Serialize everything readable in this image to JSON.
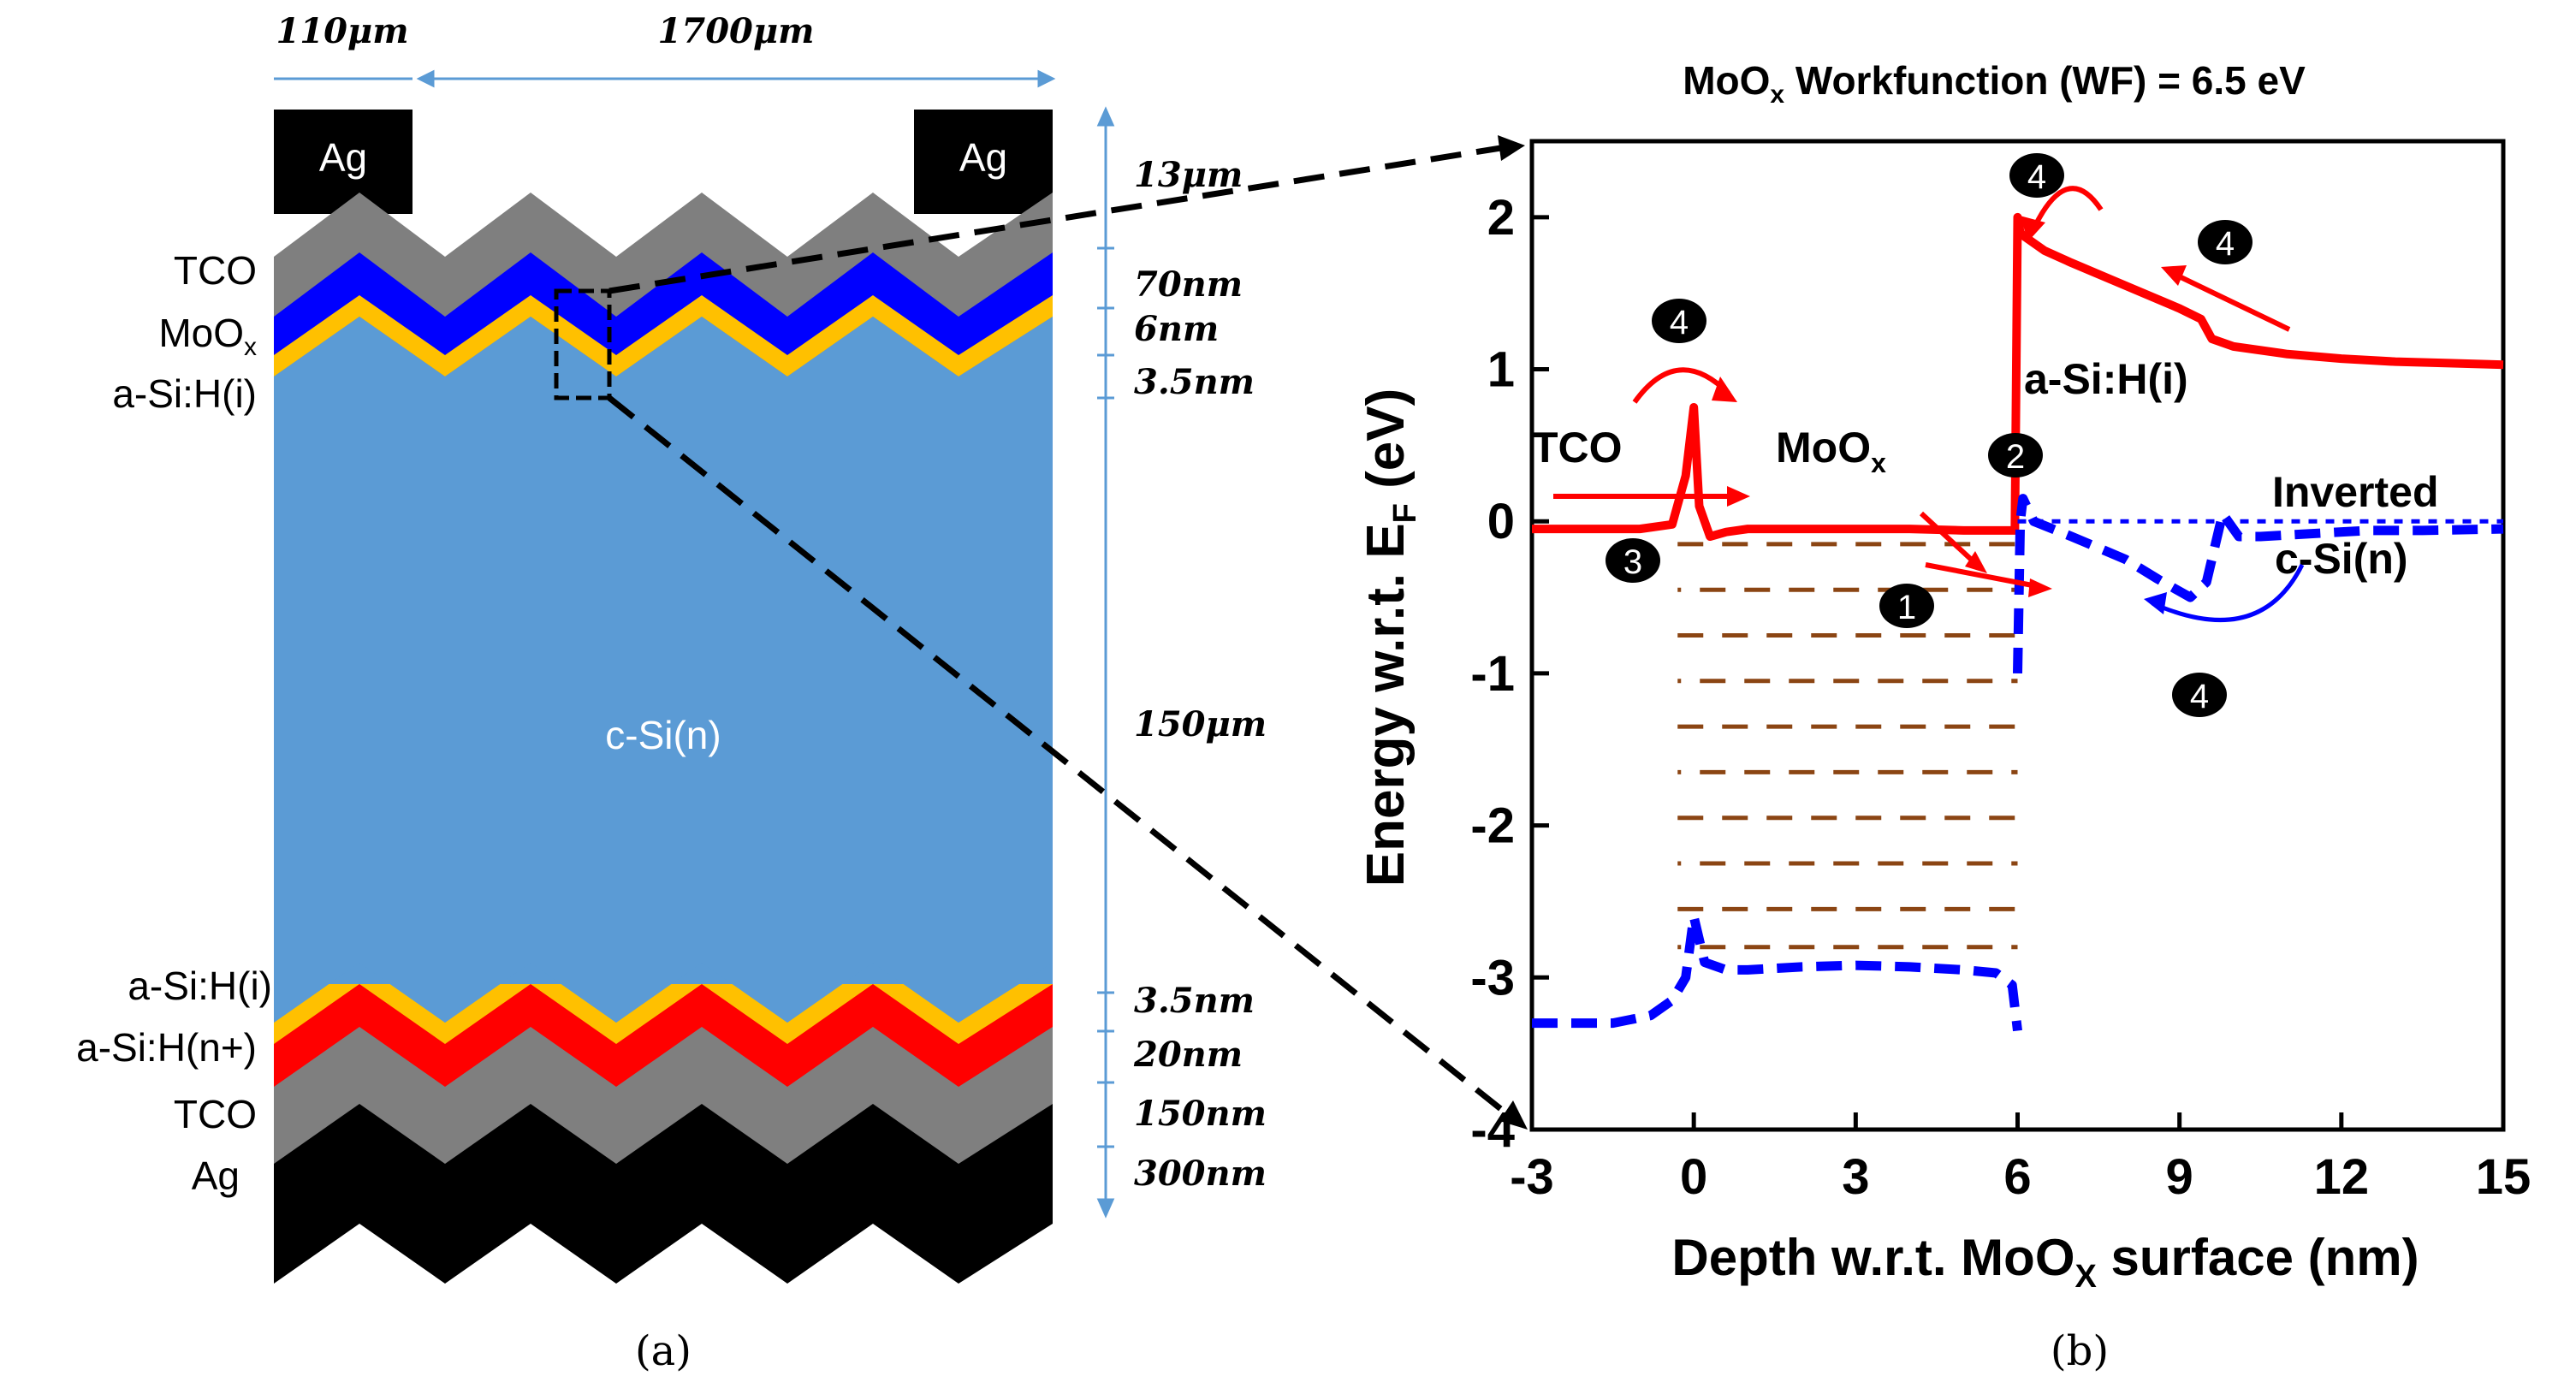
{
  "panel_a": {
    "caption": "(a)",
    "width_labels": [
      "110μm",
      "1700μm"
    ],
    "contact_labels": [
      "Ag",
      "Ag"
    ],
    "bulk_label": "c-Si(n)",
    "left_labels_top": [
      "TCO",
      "MoOx",
      "a-Si:H(i)"
    ],
    "left_labels_bottom": [
      "a-Si:H(i)",
      "a-Si:H(n+)",
      "TCO",
      "Ag"
    ],
    "thickness_labels": [
      "13μm",
      "70nm",
      "6nm",
      "3.5nm",
      "150μm",
      "3.5nm",
      "20nm",
      "150nm",
      "300nm"
    ],
    "colors": {
      "ag": "#000000",
      "tco": "#7f7f7f",
      "moox": "#0000ff",
      "asi_i": "#ffc000",
      "asi_n": "#ff0000",
      "bulk": "#5b9bd5",
      "dim_arrow": "#5b9bd5"
    }
  },
  "panel_b": {
    "caption": "(b)",
    "title_main": "MoO",
    "title_sub": "x",
    "title_rest": " Workfunction (WF) = 6.5 eV",
    "ylabel_main": "Energy w.r.t. E",
    "ylabel_sub": "F",
    "ylabel_rest": " (eV)",
    "xlabel_main": "Depth w.r.t. MoO",
    "xlabel_sub": "X",
    "xlabel_rest": " surface (nm)",
    "region_labels": {
      "tco": "TCO",
      "moox_main": "MoO",
      "moox_sub": "x",
      "asi": "a-Si:H(i)",
      "inverted": "Inverted",
      "csi": "c-Si(n)"
    },
    "markers": [
      "4",
      "4",
      "4",
      "4",
      "3",
      "1",
      "2"
    ],
    "colors": {
      "conduction": "#ff0000",
      "valence": "#0000ff",
      "traps": "#8b4513"
    }
  },
  "chart_data": {
    "type": "line",
    "title": "MoOx Workfunction (WF) = 6.5 eV",
    "xlabel": "Depth w.r.t. MoOX surface (nm)",
    "ylabel": "Energy w.r.t. EF (eV)",
    "xlim": [
      -3,
      15
    ],
    "ylim": [
      -4,
      2.5
    ],
    "xticks": [
      -3,
      0,
      3,
      6,
      9,
      12,
      15
    ],
    "yticks": [
      -4,
      -3,
      -2,
      -1,
      0,
      1,
      2
    ],
    "series": [
      {
        "style": "solid",
        "x": [
          -3,
          -1,
          -0.4,
          -0.15,
          0,
          0.1,
          0.3,
          0.6,
          1,
          2,
          3,
          4,
          5,
          5.8,
          5.95,
          6.0,
          6.05,
          6.1,
          6.5,
          7,
          8,
          9,
          9.4,
          9.6,
          10,
          11,
          12,
          13,
          14,
          15
        ],
        "y": [
          -0.05,
          -0.05,
          -0.02,
          0.3,
          0.75,
          0.1,
          -0.1,
          -0.07,
          -0.05,
          -0.05,
          -0.05,
          -0.05,
          -0.06,
          -0.06,
          -0.06,
          2.0,
          1.9,
          1.88,
          1.78,
          1.7,
          1.55,
          1.4,
          1.33,
          1.2,
          1.15,
          1.1,
          1.07,
          1.05,
          1.04,
          1.03
        ]
      },
      {
        "style": "dashed",
        "x": [
          -3,
          -1.5,
          -0.8,
          -0.4,
          -0.15,
          0,
          0.2,
          0.6,
          1,
          2,
          3,
          4,
          5,
          5.6,
          5.9,
          6.0
        ],
        "y": [
          -3.3,
          -3.3,
          -3.25,
          -3.15,
          -3.0,
          -2.6,
          -2.9,
          -2.95,
          -2.95,
          -2.93,
          -2.92,
          -2.93,
          -2.95,
          -2.97,
          -3.05,
          -3.35
        ]
      },
      {
        "style": "dashed",
        "x": [
          6.0,
          6.05,
          6.1,
          6.3,
          7,
          8,
          8.6,
          9.2,
          9.5,
          9.8,
          10.1,
          10.5,
          11.5,
          12.5,
          13.5,
          15
        ],
        "y": [
          -1.0,
          0.0,
          0.15,
          0.0,
          -0.1,
          -0.25,
          -0.38,
          -0.5,
          -0.4,
          0.05,
          -0.1,
          -0.1,
          -0.08,
          -0.06,
          -0.06,
          -0.05
        ]
      },
      {
        "style": "dotted",
        "x": [
          6,
          15
        ],
        "y": [
          0,
          0
        ]
      }
    ],
    "trap_bands": {
      "x_range": [
        -0.3,
        6.0
      ],
      "y_levels": [
        -0.15,
        -0.45,
        -0.75,
        -1.05,
        -1.35,
        -1.65,
        -1.95,
        -2.25,
        -2.55,
        -2.8
      ]
    }
  }
}
